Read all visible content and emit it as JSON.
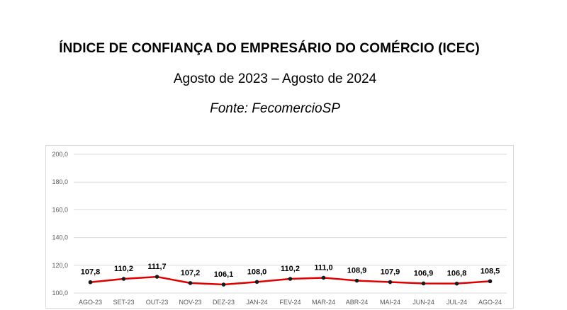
{
  "header": {
    "title": "ÍNDICE DE CONFIANÇA DO EMPRESÁRIO DO COMÉRCIO (ICEC)",
    "subtitle": "Agosto de 2023 – Agosto de 2024",
    "source": "Fonte: FecomercioSP"
  },
  "chart_data": {
    "type": "line",
    "title": "",
    "xlabel": "",
    "ylabel": "",
    "categories": [
      "AGO-23",
      "SET-23",
      "OUT-23",
      "NOV-23",
      "DEZ-23",
      "JAN-24",
      "FEV-24",
      "MAR-24",
      "ABR-24",
      "MAI-24",
      "JUN-24",
      "JUL-24",
      "AGO-24"
    ],
    "series": [
      {
        "values": [
          107.8,
          110.2,
          111.7,
          107.2,
          106.1,
          108.0,
          110.2,
          111.0,
          108.9,
          107.9,
          106.9,
          106.8,
          108.5
        ],
        "labels": [
          "107,8",
          "110,2",
          "111,7",
          "107,2",
          "106,1",
          "108,0",
          "110,2",
          "111,0",
          "108,9",
          "107,9",
          "106,9",
          "106,8",
          "108,5"
        ],
        "color": "#e00000",
        "marker_color": "#1a1a1a"
      }
    ],
    "ylim": [
      100,
      200
    ],
    "yticks": [
      100,
      120,
      140,
      160,
      180,
      200
    ],
    "ytick_labels": [
      "100,0",
      "120,0",
      "140,0",
      "160,0",
      "180,0",
      "200,0"
    ],
    "grid": true,
    "legend": "none",
    "gridline_color": "#d9d9d9"
  }
}
